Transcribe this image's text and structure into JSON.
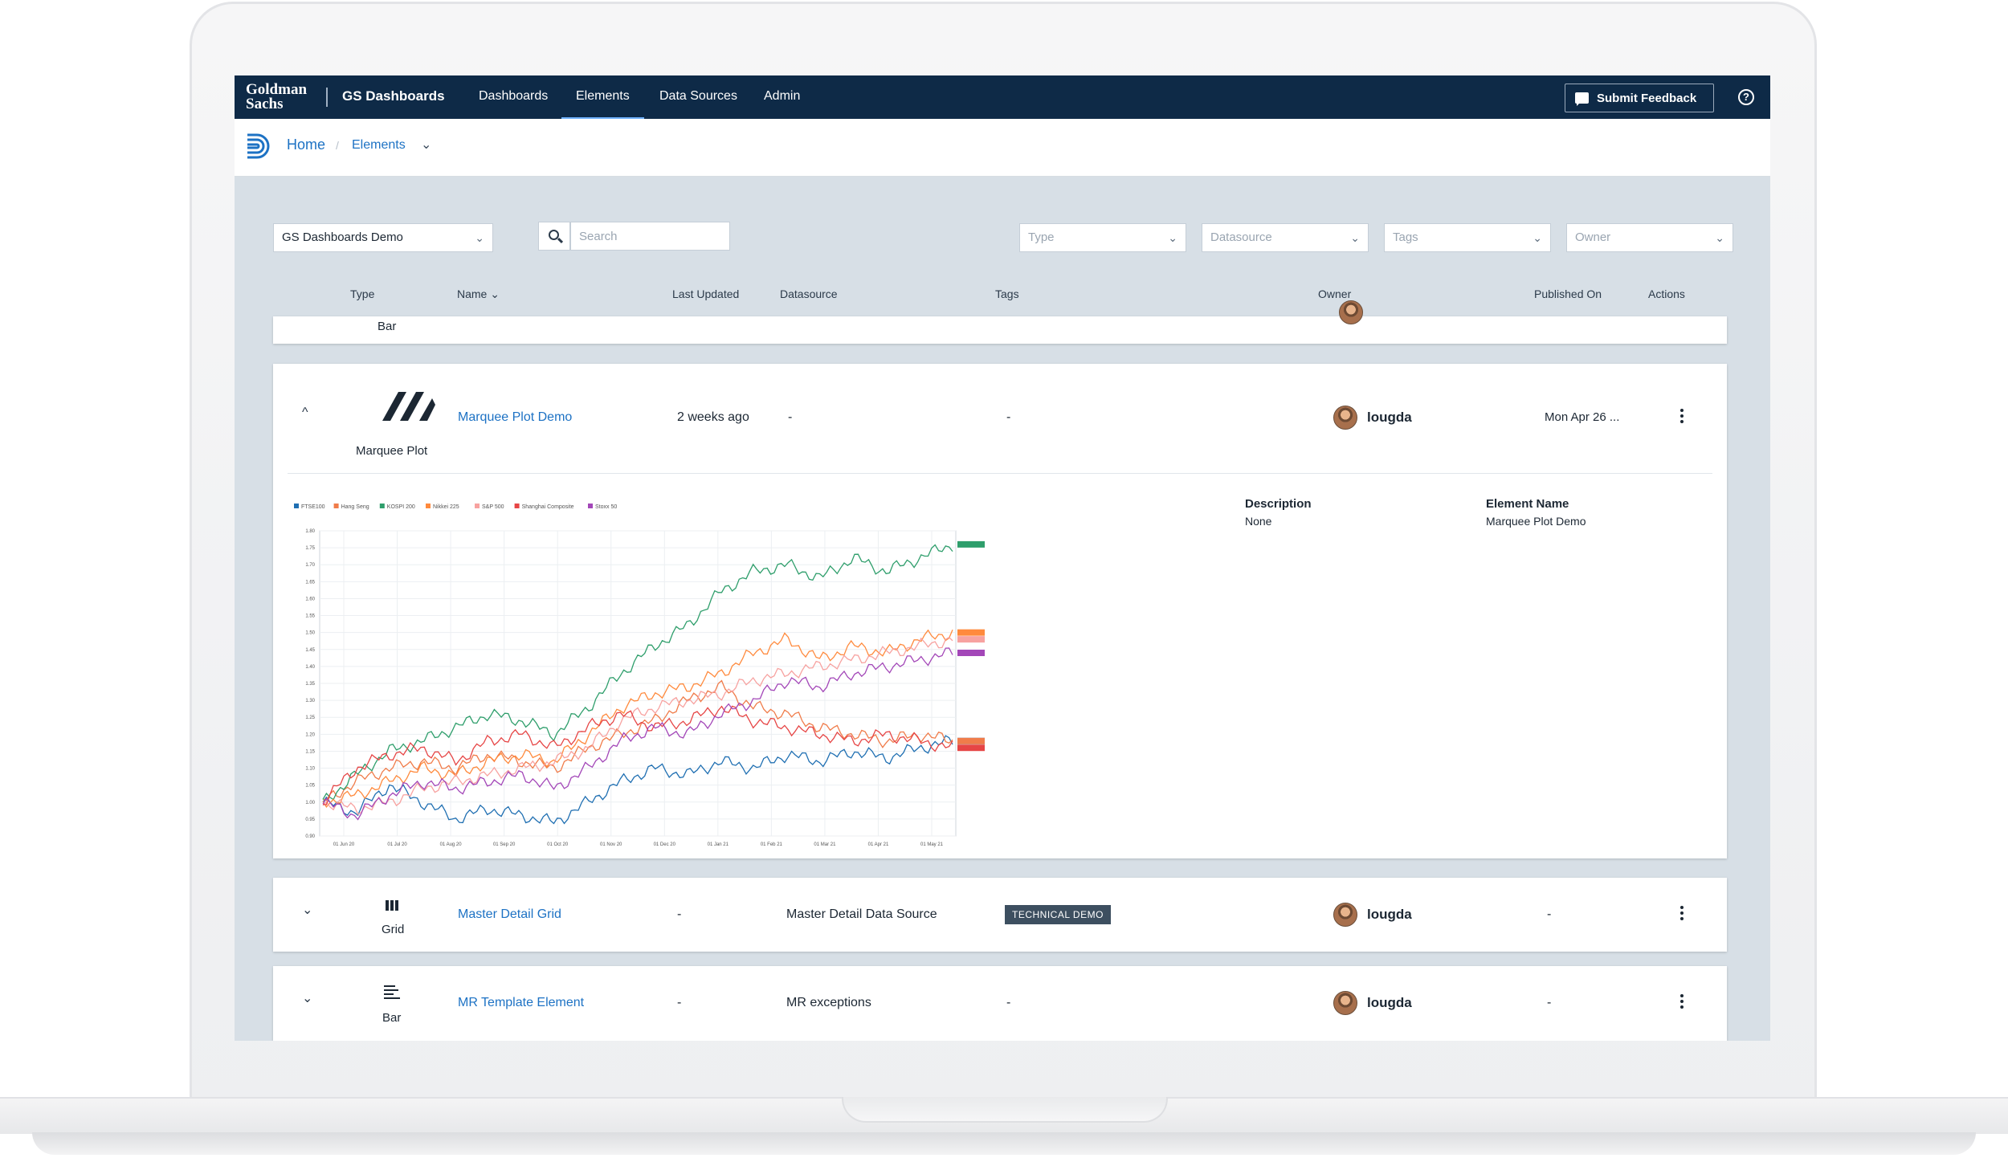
{
  "nav": {
    "logo_line1": "Goldman",
    "logo_line2": "Sachs",
    "app_name": "GS Dashboards",
    "tabs": [
      {
        "label": "Dashboards"
      },
      {
        "label": "Elements"
      },
      {
        "label": "Data Sources"
      },
      {
        "label": "Admin"
      }
    ],
    "feedback_label": "Submit Feedback",
    "help_glyph": "?"
  },
  "breadcrumb": {
    "home": "Home",
    "separator": "/",
    "current": "Elements",
    "chevron": "⌄"
  },
  "filters": {
    "workspace": "GS Dashboards Demo",
    "search_placeholder": "Search",
    "type_placeholder": "Type",
    "datasource_placeholder": "Datasource",
    "tags_placeholder": "Tags",
    "owner_placeholder": "Owner",
    "chevron": "⌄"
  },
  "columns": {
    "type": "Type",
    "name": "Name",
    "name_sort": "⌄",
    "last_updated": "Last Updated",
    "datasource": "Datasource",
    "tags": "Tags",
    "owner": "Owner",
    "published_on": "Published On",
    "actions": "Actions"
  },
  "rows": [
    {
      "type_label": "Bar"
    },
    {
      "expand": "^",
      "type_label": "Marquee Plot",
      "name": "Marquee Plot Demo",
      "last_updated": "2 weeks ago",
      "datasource": "-",
      "tags": "-",
      "owner": "lougda",
      "published_on": "Mon Apr 26 ...",
      "detail": {
        "description_label": "Description",
        "description_value": "None",
        "element_name_label": "Element Name",
        "element_name_value": "Marquee Plot Demo"
      }
    },
    {
      "expand": "⌄",
      "type_label": "Grid",
      "name": "Master Detail Grid",
      "last_updated": "-",
      "datasource": "Master Detail Data Source",
      "tag_badge": "TECHNICAL DEMO",
      "owner": "lougda",
      "published_on": "-"
    },
    {
      "expand": "⌄",
      "type_label": "Bar",
      "name": "MR Template Element",
      "last_updated": "-",
      "datasource": "MR exceptions",
      "tags": "-",
      "owner": "lougda",
      "published_on": "-"
    }
  ],
  "chart_data": {
    "type": "line",
    "series": [
      {
        "name": "FTSE100",
        "color": "#1f6fb2",
        "values": [
          1.0,
          0.97,
          1.05,
          1.0,
          0.95,
          0.98,
          0.96,
          0.94,
          1.0,
          1.06,
          1.1,
          1.08,
          1.12,
          1.1,
          1.14,
          1.12,
          1.15,
          1.13,
          1.16,
          1.18
        ]
      },
      {
        "name": "Hang Seng",
        "color": "#f07c4a",
        "values": [
          1.0,
          1.06,
          1.1,
          1.12,
          1.1,
          1.14,
          1.12,
          1.1,
          1.16,
          1.2,
          1.24,
          1.3,
          1.34,
          1.28,
          1.26,
          1.22,
          1.2,
          1.18,
          1.2,
          1.18
        ]
      },
      {
        "name": "KOSPI 200",
        "color": "#2e9e6b",
        "values": [
          1.0,
          1.08,
          1.15,
          1.18,
          1.22,
          1.26,
          1.24,
          1.2,
          1.28,
          1.38,
          1.46,
          1.52,
          1.62,
          1.68,
          1.7,
          1.66,
          1.72,
          1.68,
          1.72,
          1.76
        ]
      },
      {
        "name": "Nikkei 225",
        "color": "#ff8a3d",
        "values": [
          1.0,
          1.02,
          1.06,
          1.1,
          1.08,
          1.12,
          1.14,
          1.12,
          1.2,
          1.28,
          1.32,
          1.34,
          1.38,
          1.44,
          1.48,
          1.42,
          1.46,
          1.44,
          1.48,
          1.5
        ]
      },
      {
        "name": "S&P 500",
        "color": "#f7a2a0",
        "values": [
          1.0,
          0.98,
          1.0,
          1.04,
          1.06,
          1.08,
          1.1,
          1.12,
          1.16,
          1.24,
          1.28,
          1.3,
          1.32,
          1.36,
          1.38,
          1.4,
          1.42,
          1.44,
          1.46,
          1.48
        ]
      },
      {
        "name": "Shanghai Composite",
        "color": "#e64545",
        "values": [
          1.0,
          1.1,
          1.14,
          1.16,
          1.12,
          1.18,
          1.2,
          1.16,
          1.22,
          1.26,
          1.22,
          1.24,
          1.28,
          1.24,
          1.22,
          1.2,
          1.18,
          1.2,
          1.18,
          1.16
        ]
      },
      {
        "name": "Stoxx 50",
        "color": "#a347b8",
        "values": [
          1.0,
          0.96,
          1.02,
          1.06,
          1.04,
          1.06,
          1.08,
          1.04,
          1.1,
          1.18,
          1.22,
          1.2,
          1.26,
          1.3,
          1.36,
          1.34,
          1.38,
          1.4,
          1.42,
          1.44
        ]
      }
    ],
    "x_ticks": [
      "01 Jun 20",
      "01 Jul 20",
      "01 Aug 20",
      "01 Sep 20",
      "01 Oct 20",
      "01 Nov 20",
      "01 Dec 20",
      "01 Jan 21",
      "01 Feb 21",
      "01 Mar 21",
      "01 Apr 21",
      "01 May 21"
    ],
    "y_ticks": [
      0.9,
      0.95,
      1.0,
      1.05,
      1.1,
      1.15,
      1.2,
      1.25,
      1.3,
      1.35,
      1.4,
      1.45,
      1.5,
      1.55,
      1.6,
      1.65,
      1.7,
      1.75,
      1.8
    ],
    "ylim": [
      0.9,
      1.8
    ],
    "grid": true,
    "legend_position": "top-left"
  }
}
